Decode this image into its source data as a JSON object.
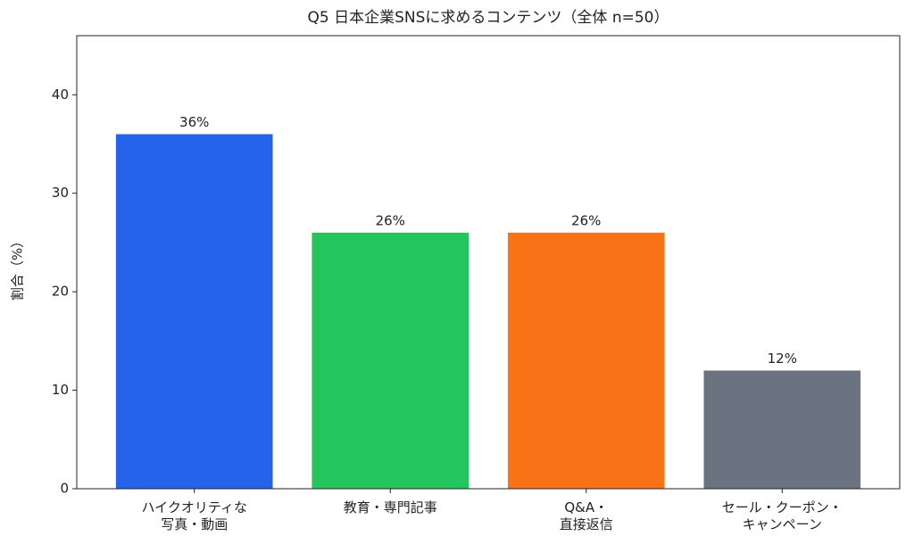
{
  "chart_data": {
    "type": "bar",
    "title": "Q5 日本企業SNSに求めるコンテンツ（全体 n=50）",
    "y_label": "割合（%）",
    "categories": [
      "ハイクオリティな\n写真・動画",
      "教育・専門記事",
      "Q&A・\n直接返信",
      "セール・クーポン・\nキャンペーン"
    ],
    "values": [
      36,
      26,
      26,
      12
    ],
    "value_labels": [
      "36%",
      "26%",
      "26%",
      "12%"
    ],
    "colors": [
      "#2563eb",
      "#22c55e",
      "#f97316",
      "#6b7280"
    ],
    "ylim": [
      0,
      46
    ],
    "yticks": [
      0,
      10,
      20,
      30,
      40
    ],
    "grid": false
  }
}
